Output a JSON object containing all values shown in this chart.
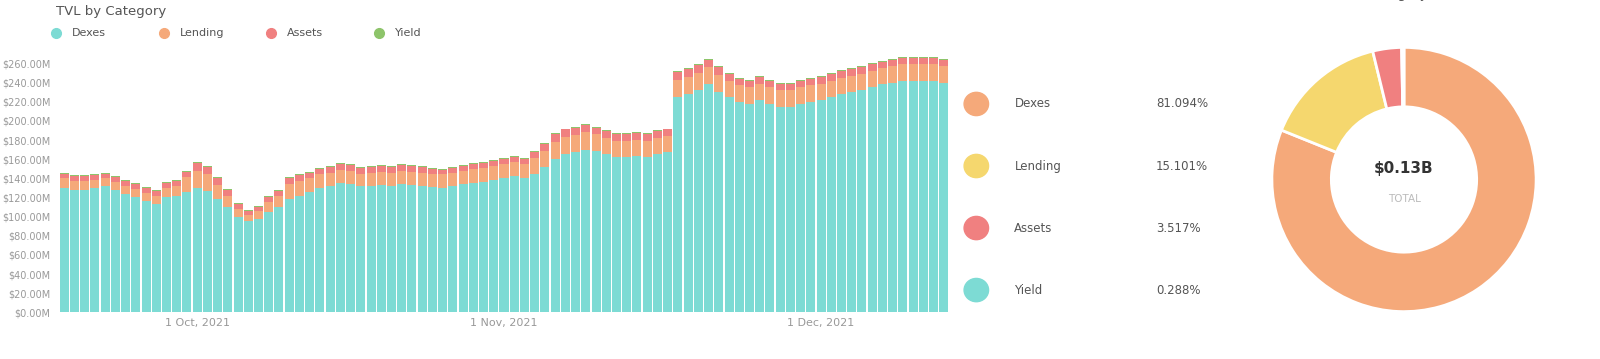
{
  "bar_title": "TVL by Category",
  "pie_title": "TVL Category Share",
  "legend_labels": [
    "Dexes",
    "Lending",
    "Assets",
    "Yield"
  ],
  "bar_colors": [
    "#7ddbd4",
    "#f5a97a",
    "#f08080",
    "#8dc46a"
  ],
  "pie_colors": [
    "#f5a97a",
    "#f5d76e",
    "#f08080",
    "#7ddbd4"
  ],
  "pie_values": [
    81.094,
    15.101,
    3.517,
    0.288
  ],
  "pie_labels": [
    "Dexes",
    "Lending",
    "Assets",
    "Yield"
  ],
  "pie_pcts": [
    "81.094%",
    "15.101%",
    "3.517%",
    "0.288%"
  ],
  "pie_center_text": "$0.13B",
  "pie_center_sub": "TOTAL",
  "ytick_labels": [
    "$0.00M",
    "$20.00M",
    "$40.00M",
    "$60.00M",
    "$80.00M",
    "$100.00M",
    "$120.00M",
    "$140.00M",
    "$160.00M",
    "$180.00M",
    "$200.00M",
    "$220.00M",
    "$240.00M",
    "$260.00M"
  ],
  "xtick_labels": [
    "1 Oct, 2021",
    "1 Nov, 2021",
    "1 Dec, 2021"
  ],
  "xtick_positions": [
    13,
    43,
    74
  ],
  "background_color": "#ffffff",
  "dexes": [
    130,
    128,
    128,
    130,
    132,
    128,
    124,
    120,
    116,
    113,
    120,
    122,
    126,
    130,
    127,
    118,
    110,
    100,
    95,
    98,
    105,
    110,
    118,
    122,
    126,
    130,
    132,
    135,
    134,
    132,
    132,
    133,
    132,
    134,
    133,
    132,
    131,
    130,
    132,
    134,
    135,
    136,
    138,
    140,
    142,
    140,
    145,
    152,
    160,
    165,
    167,
    170,
    168,
    165,
    162,
    162,
    163,
    162,
    165,
    167,
    225,
    228,
    232,
    238,
    230,
    225,
    220,
    218,
    222,
    218,
    215,
    215,
    218,
    220,
    222,
    225,
    228,
    230,
    232,
    235,
    238,
    240,
    242,
    242,
    242,
    242,
    240
  ],
  "lending": [
    10,
    9,
    9,
    8,
    8,
    8,
    8,
    9,
    9,
    9,
    10,
    10,
    15,
    18,
    17,
    15,
    12,
    8,
    7,
    8,
    10,
    12,
    16,
    15,
    14,
    14,
    14,
    14,
    14,
    13,
    14,
    14,
    14,
    14,
    14,
    14,
    14,
    14,
    14,
    14,
    15,
    15,
    15,
    15,
    15,
    15,
    16,
    17,
    18,
    18,
    18,
    18,
    18,
    17,
    17,
    17,
    17,
    17,
    17,
    17,
    18,
    18,
    18,
    18,
    18,
    17,
    17,
    17,
    17,
    17,
    17,
    17,
    17,
    17,
    17,
    17,
    17,
    17,
    17,
    17,
    17,
    17,
    17,
    17,
    17,
    17,
    17
  ],
  "assets": [
    5,
    5,
    5,
    5,
    5,
    5,
    5,
    5,
    5,
    5,
    5,
    5,
    6,
    8,
    8,
    7,
    6,
    5,
    4,
    4,
    5,
    5,
    6,
    6,
    6,
    6,
    6,
    6,
    6,
    6,
    6,
    6,
    6,
    6,
    6,
    6,
    5,
    5,
    5,
    5,
    5,
    5,
    5,
    5,
    5,
    5,
    6,
    7,
    8,
    8,
    8,
    8,
    7,
    7,
    7,
    7,
    7,
    7,
    7,
    7,
    8,
    8,
    8,
    8,
    8,
    7,
    7,
    7,
    7,
    7,
    7,
    7,
    7,
    7,
    7,
    7,
    7,
    7,
    7,
    7,
    7,
    7,
    7,
    7,
    7,
    7,
    7
  ],
  "yield_vals": [
    1,
    1,
    1,
    1,
    1,
    1,
    1,
    1,
    1,
    1,
    1,
    1,
    1,
    1,
    1,
    1,
    1,
    1,
    1,
    1,
    1,
    1,
    1,
    1,
    1,
    1,
    1,
    1,
    1,
    1,
    1,
    1,
    1,
    1,
    1,
    1,
    1,
    1,
    1,
    1,
    1,
    1,
    1,
    1,
    1,
    1,
    1,
    1,
    1,
    1,
    1,
    1,
    1,
    1,
    1,
    1,
    1,
    1,
    1,
    1,
    1,
    1,
    1,
    1,
    1,
    1,
    1,
    1,
    1,
    1,
    1,
    1,
    1,
    1,
    1,
    1,
    1,
    1,
    1,
    1,
    1,
    1,
    1,
    1,
    1,
    1,
    1
  ]
}
